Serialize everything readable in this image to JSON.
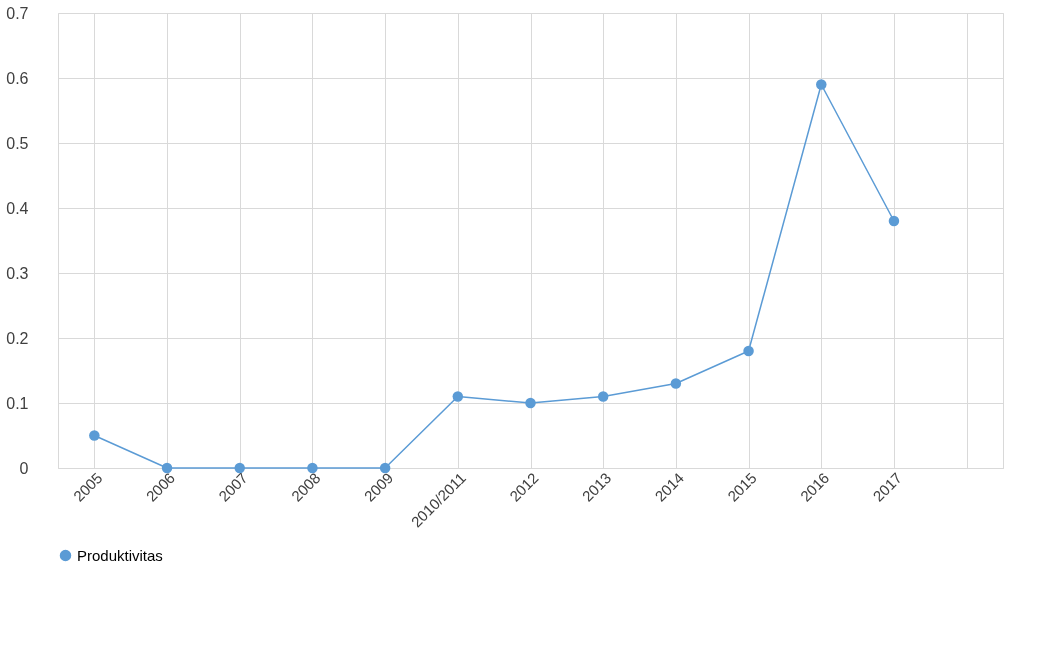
{
  "chart_data": {
    "type": "line",
    "categories": [
      "2005",
      "2006",
      "2007",
      "2008",
      "2009",
      "2010/2011",
      "2012",
      "2013",
      "2014",
      "2015",
      "2016",
      "2017",
      null
    ],
    "series": [
      {
        "name": "Produktivitas",
        "color": "#5b9bd5",
        "values": [
          0.05,
          0,
          0,
          0,
          0,
          0.11,
          0.1,
          0.11,
          0.13,
          0.18,
          0.59,
          0.38,
          null
        ]
      }
    ],
    "ylim": [
      0,
      0.7
    ],
    "yticks": [
      0,
      0.1,
      0.2,
      0.3,
      0.4,
      0.5,
      0.6,
      0.7
    ],
    "grid": true,
    "legend": "bottom",
    "marker": "circle"
  }
}
